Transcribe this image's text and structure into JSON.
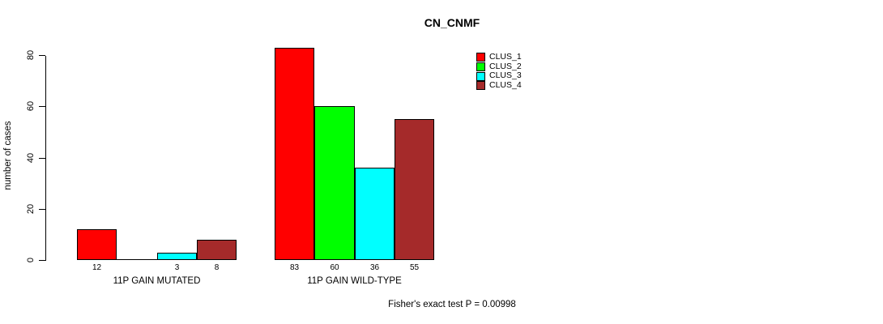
{
  "chart_data": {
    "type": "bar",
    "title": "CN_CNMF",
    "ylabel": "number of cases",
    "xlabel": "",
    "ylim": [
      0,
      80
    ],
    "yticks": [
      0,
      20,
      40,
      60,
      80
    ],
    "grid": false,
    "legend_position": "top-right",
    "categories": [
      "11P GAIN MUTATED",
      "11P GAIN WILD-TYPE"
    ],
    "series": [
      {
        "name": "CLUS_1",
        "color": "#ff0000",
        "values": [
          12,
          83
        ]
      },
      {
        "name": "CLUS_2",
        "color": "#00ff00",
        "values": [
          0,
          60
        ]
      },
      {
        "name": "CLUS_3",
        "color": "#00ffff",
        "values": [
          3,
          36
        ]
      },
      {
        "name": "CLUS_4",
        "color": "#a52a2a",
        "values": [
          8,
          55
        ]
      }
    ],
    "bar_value_labels": [
      [
        "12",
        "",
        "3",
        "8"
      ],
      [
        "83",
        "60",
        "36",
        "55"
      ]
    ],
    "annotation": "Fisher's exact test P = 0.00998",
    "colors": {
      "bar_border": "#000000",
      "axis": "#000000",
      "text": "#000000",
      "background": "#ffffff"
    }
  }
}
